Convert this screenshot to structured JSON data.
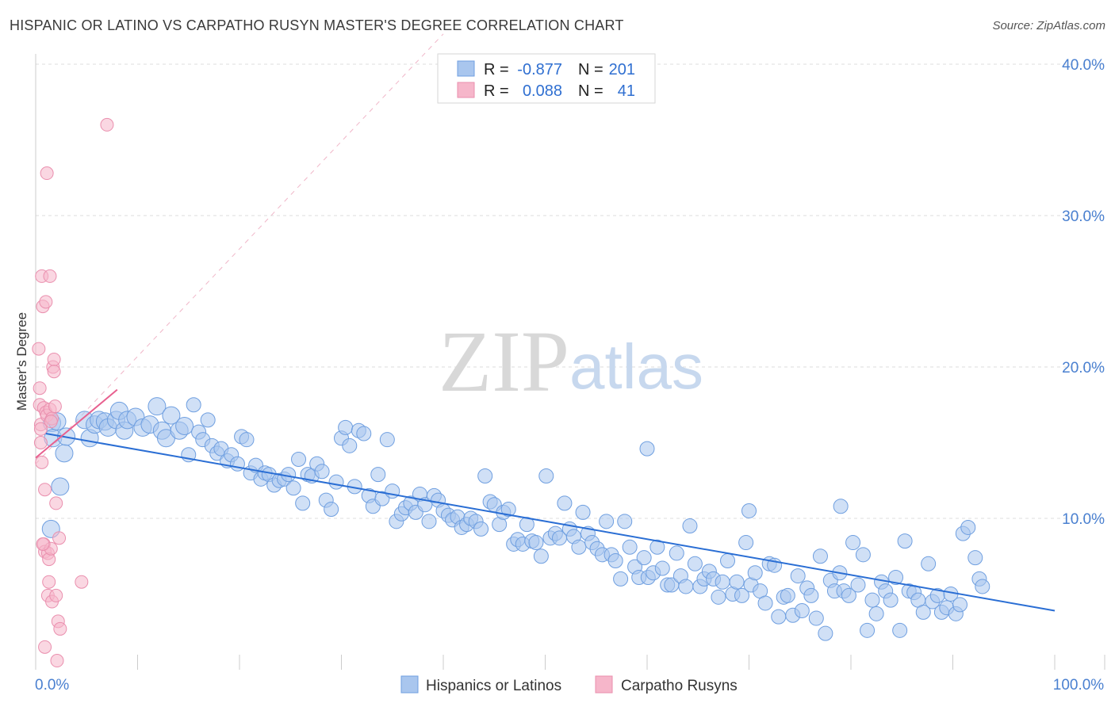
{
  "header": {
    "title": "HISPANIC OR LATINO VS CARPATHO RUSYN MASTER'S DEGREE CORRELATION CHART",
    "source": "Source: ZipAtlas.com"
  },
  "watermark": {
    "zip": "ZIP",
    "atlas": "atlas"
  },
  "colors": {
    "blue_fill": "#a9c6ee",
    "blue_stroke": "#6f9fe0",
    "blue_line": "#2a6ed4",
    "pink_fill": "#f6b6ca",
    "pink_stroke": "#ea8fae",
    "pink_line": "#e8608f",
    "grid": "#dddddd",
    "tick_label": "#4a80d0"
  },
  "legend_top": {
    "rows": [
      {
        "r_label": "R =",
        "r_value": "-0.877",
        "n_label": "N =",
        "n_value": "201",
        "series": "blue"
      },
      {
        "r_label": "R =",
        "r_value": "0.088",
        "n_label": "N =",
        "n_value": "41",
        "series": "pink"
      }
    ]
  },
  "legend_bottom": [
    {
      "label": "Hispanics or Latinos",
      "series": "blue"
    },
    {
      "label": "Carpatho Rusyns",
      "series": "pink"
    }
  ],
  "chart_data": {
    "type": "scatter",
    "ylabel": "Master's Degree",
    "xlim": [
      0,
      100
    ],
    "ylim": [
      0,
      42
    ],
    "x_tick_labels": [
      {
        "value": 0,
        "label": "0.0%"
      },
      {
        "value": 100,
        "label": "100.0%"
      }
    ],
    "y_tick_labels": [
      {
        "value": 10,
        "label": "10.0%"
      },
      {
        "value": 20,
        "label": "20.0%"
      },
      {
        "value": 30,
        "label": "30.0%"
      },
      {
        "value": 40,
        "label": "40.0%"
      }
    ],
    "series": [
      {
        "name": "Hispanics or Latinos",
        "color": "blue",
        "trend": {
          "x": [
            1,
            100
          ],
          "y": [
            15.6,
            3.9
          ]
        },
        "points": [
          [
            1.5,
            9.3
          ],
          [
            1.6,
            16.3
          ],
          [
            1.7,
            15.3
          ],
          [
            2.1,
            16.4
          ],
          [
            2.4,
            12.1
          ],
          [
            2.8,
            14.3
          ],
          [
            3.0,
            15.4
          ],
          [
            4.8,
            16.5
          ],
          [
            5.3,
            15.3
          ],
          [
            5.8,
            16.2
          ],
          [
            6.2,
            16.5
          ],
          [
            6.8,
            16.4
          ],
          [
            7.1,
            16.0
          ],
          [
            7.9,
            16.5
          ],
          [
            8.2,
            17.1
          ],
          [
            8.7,
            15.8
          ],
          [
            9.0,
            16.5
          ],
          [
            9.8,
            16.7
          ],
          [
            10.5,
            16.0
          ],
          [
            11.2,
            16.2
          ],
          [
            11.9,
            17.4
          ],
          [
            12.4,
            15.8
          ],
          [
            12.8,
            15.3
          ],
          [
            13.3,
            16.8
          ],
          [
            14.1,
            15.8
          ],
          [
            14.6,
            16.1
          ],
          [
            15.0,
            14.2
          ],
          [
            15.5,
            17.5
          ],
          [
            16.0,
            15.7
          ],
          [
            16.4,
            15.2
          ],
          [
            16.9,
            16.5
          ],
          [
            17.3,
            14.8
          ],
          [
            17.8,
            14.3
          ],
          [
            18.2,
            14.6
          ],
          [
            18.8,
            13.8
          ],
          [
            19.2,
            14.2
          ],
          [
            19.8,
            13.6
          ],
          [
            20.2,
            15.4
          ],
          [
            20.7,
            15.2
          ],
          [
            21.1,
            13.0
          ],
          [
            21.6,
            13.5
          ],
          [
            22.1,
            12.6
          ],
          [
            22.5,
            13.0
          ],
          [
            22.9,
            12.9
          ],
          [
            23.4,
            12.2
          ],
          [
            23.9,
            12.5
          ],
          [
            24.4,
            12.6
          ],
          [
            24.8,
            12.9
          ],
          [
            25.3,
            12.0
          ],
          [
            25.8,
            13.9
          ],
          [
            26.2,
            11.0
          ],
          [
            26.7,
            12.9
          ],
          [
            27.1,
            12.8
          ],
          [
            27.6,
            13.6
          ],
          [
            28.1,
            13.1
          ],
          [
            28.5,
            11.2
          ],
          [
            29.0,
            10.6
          ],
          [
            29.5,
            12.4
          ],
          [
            30.0,
            15.3
          ],
          [
            30.4,
            16.0
          ],
          [
            30.8,
            14.8
          ],
          [
            31.3,
            12.1
          ],
          [
            31.7,
            15.8
          ],
          [
            32.2,
            15.6
          ],
          [
            32.7,
            11.5
          ],
          [
            33.1,
            10.8
          ],
          [
            33.6,
            12.9
          ],
          [
            34.0,
            11.3
          ],
          [
            34.5,
            15.2
          ],
          [
            35.0,
            11.8
          ],
          [
            35.4,
            9.8
          ],
          [
            35.9,
            10.3
          ],
          [
            36.3,
            10.7
          ],
          [
            36.8,
            11.0
          ],
          [
            37.3,
            10.4
          ],
          [
            37.7,
            11.6
          ],
          [
            38.2,
            10.9
          ],
          [
            38.6,
            9.8
          ],
          [
            39.1,
            11.5
          ],
          [
            39.5,
            11.2
          ],
          [
            40.0,
            10.5
          ],
          [
            40.5,
            10.2
          ],
          [
            40.9,
            9.9
          ],
          [
            41.4,
            10.1
          ],
          [
            41.8,
            9.4
          ],
          [
            42.3,
            9.6
          ],
          [
            42.7,
            10.0
          ],
          [
            43.2,
            9.8
          ],
          [
            43.7,
            9.3
          ],
          [
            44.1,
            12.8
          ],
          [
            44.6,
            11.1
          ],
          [
            45.0,
            10.9
          ],
          [
            45.5,
            9.6
          ],
          [
            45.9,
            10.4
          ],
          [
            46.4,
            10.6
          ],
          [
            46.9,
            8.3
          ],
          [
            47.3,
            8.6
          ],
          [
            47.8,
            8.3
          ],
          [
            48.2,
            9.6
          ],
          [
            48.7,
            8.5
          ],
          [
            49.1,
            8.4
          ],
          [
            49.6,
            7.5
          ],
          [
            50.1,
            12.8
          ],
          [
            50.5,
            8.7
          ],
          [
            51.0,
            9.0
          ],
          [
            51.4,
            8.7
          ],
          [
            51.9,
            11.0
          ],
          [
            52.4,
            9.3
          ],
          [
            52.8,
            8.8
          ],
          [
            53.3,
            8.1
          ],
          [
            53.7,
            10.4
          ],
          [
            54.2,
            9.0
          ],
          [
            54.6,
            8.4
          ],
          [
            55.1,
            8.0
          ],
          [
            55.6,
            7.6
          ],
          [
            56.0,
            9.8
          ],
          [
            56.5,
            7.6
          ],
          [
            56.9,
            7.2
          ],
          [
            57.4,
            6.0
          ],
          [
            57.8,
            9.8
          ],
          [
            58.3,
            8.1
          ],
          [
            58.8,
            6.8
          ],
          [
            59.2,
            6.1
          ],
          [
            59.7,
            7.4
          ],
          [
            60.1,
            6.1
          ],
          [
            60.6,
            6.4
          ],
          [
            61.0,
            8.1
          ],
          [
            61.5,
            6.7
          ],
          [
            62.0,
            5.6
          ],
          [
            62.4,
            5.6
          ],
          [
            62.9,
            7.7
          ],
          [
            63.3,
            6.2
          ],
          [
            63.8,
            5.5
          ],
          [
            64.2,
            9.5
          ],
          [
            64.7,
            7.0
          ],
          [
            65.2,
            5.5
          ],
          [
            65.6,
            6.0
          ],
          [
            66.1,
            6.5
          ],
          [
            66.5,
            6.0
          ],
          [
            67.0,
            4.8
          ],
          [
            67.4,
            5.8
          ],
          [
            67.9,
            7.2
          ],
          [
            68.4,
            5.0
          ],
          [
            68.8,
            5.8
          ],
          [
            69.3,
            4.9
          ],
          [
            69.7,
            8.4
          ],
          [
            70.2,
            5.6
          ],
          [
            70.6,
            6.4
          ],
          [
            71.1,
            5.2
          ],
          [
            71.6,
            4.4
          ],
          [
            72.0,
            7.0
          ],
          [
            72.5,
            6.9
          ],
          [
            72.9,
            3.5
          ],
          [
            73.4,
            4.8
          ],
          [
            73.8,
            4.9
          ],
          [
            74.3,
            3.6
          ],
          [
            74.8,
            6.2
          ],
          [
            75.2,
            3.9
          ],
          [
            75.7,
            5.4
          ],
          [
            76.1,
            4.9
          ],
          [
            76.6,
            3.4
          ],
          [
            77.0,
            7.5
          ],
          [
            77.5,
            2.4
          ],
          [
            78.0,
            5.9
          ],
          [
            78.4,
            5.2
          ],
          [
            78.9,
            6.4
          ],
          [
            79.3,
            5.2
          ],
          [
            79.8,
            4.9
          ],
          [
            80.2,
            8.4
          ],
          [
            80.7,
            5.6
          ],
          [
            81.2,
            7.6
          ],
          [
            81.6,
            2.6
          ],
          [
            82.1,
            4.6
          ],
          [
            82.5,
            3.7
          ],
          [
            83.0,
            5.8
          ],
          [
            83.4,
            5.2
          ],
          [
            83.9,
            4.6
          ],
          [
            84.4,
            6.1
          ],
          [
            84.8,
            2.6
          ],
          [
            85.3,
            8.5
          ],
          [
            85.7,
            5.2
          ],
          [
            86.2,
            5.1
          ],
          [
            86.6,
            4.6
          ],
          [
            87.1,
            3.8
          ],
          [
            87.6,
            7.0
          ],
          [
            88.0,
            4.5
          ],
          [
            88.5,
            4.9
          ],
          [
            88.9,
            3.8
          ],
          [
            89.4,
            4.1
          ],
          [
            89.8,
            5.0
          ],
          [
            90.3,
            3.7
          ],
          [
            90.7,
            4.3
          ],
          [
            60.0,
            14.6
          ],
          [
            79.0,
            10.8
          ],
          [
            70.0,
            10.5
          ],
          [
            91.0,
            9.0
          ],
          [
            91.5,
            9.4
          ],
          [
            92.2,
            7.4
          ],
          [
            92.6,
            6.0
          ],
          [
            92.9,
            5.5
          ]
        ]
      },
      {
        "name": "Carpatho Rusyns",
        "color": "pink",
        "trend": {
          "x": [
            0,
            8
          ],
          "y": [
            14.0,
            18.5
          ]
        },
        "points": [
          [
            0.3,
            21.2
          ],
          [
            0.4,
            18.6
          ],
          [
            0.4,
            17.5
          ],
          [
            0.5,
            16.2
          ],
          [
            0.5,
            15.0
          ],
          [
            0.6,
            13.7
          ],
          [
            0.6,
            26.0
          ],
          [
            0.7,
            24.0
          ],
          [
            0.8,
            17.3
          ],
          [
            0.8,
            8.3
          ],
          [
            0.9,
            7.8
          ],
          [
            0.9,
            11.9
          ],
          [
            1.0,
            24.3
          ],
          [
            1.0,
            17.0
          ],
          [
            1.1,
            16.8
          ],
          [
            1.2,
            4.9
          ],
          [
            1.2,
            7.7
          ],
          [
            1.3,
            7.3
          ],
          [
            1.3,
            5.8
          ],
          [
            1.4,
            26.0
          ],
          [
            1.4,
            17.2
          ],
          [
            1.5,
            8.0
          ],
          [
            1.6,
            4.5
          ],
          [
            1.6,
            16.6
          ],
          [
            1.7,
            20.0
          ],
          [
            1.8,
            20.5
          ],
          [
            1.8,
            19.7
          ],
          [
            1.9,
            17.4
          ],
          [
            2.0,
            11.0
          ],
          [
            2.0,
            4.9
          ],
          [
            2.1,
            0.6
          ],
          [
            2.2,
            3.2
          ],
          [
            2.3,
            8.7
          ],
          [
            2.4,
            2.7
          ],
          [
            4.5,
            5.8
          ],
          [
            7.0,
            36.0
          ],
          [
            1.1,
            32.8
          ],
          [
            0.5,
            15.9
          ],
          [
            0.7,
            8.3
          ],
          [
            0.9,
            1.5
          ],
          [
            1.5,
            16.4
          ]
        ]
      }
    ]
  }
}
